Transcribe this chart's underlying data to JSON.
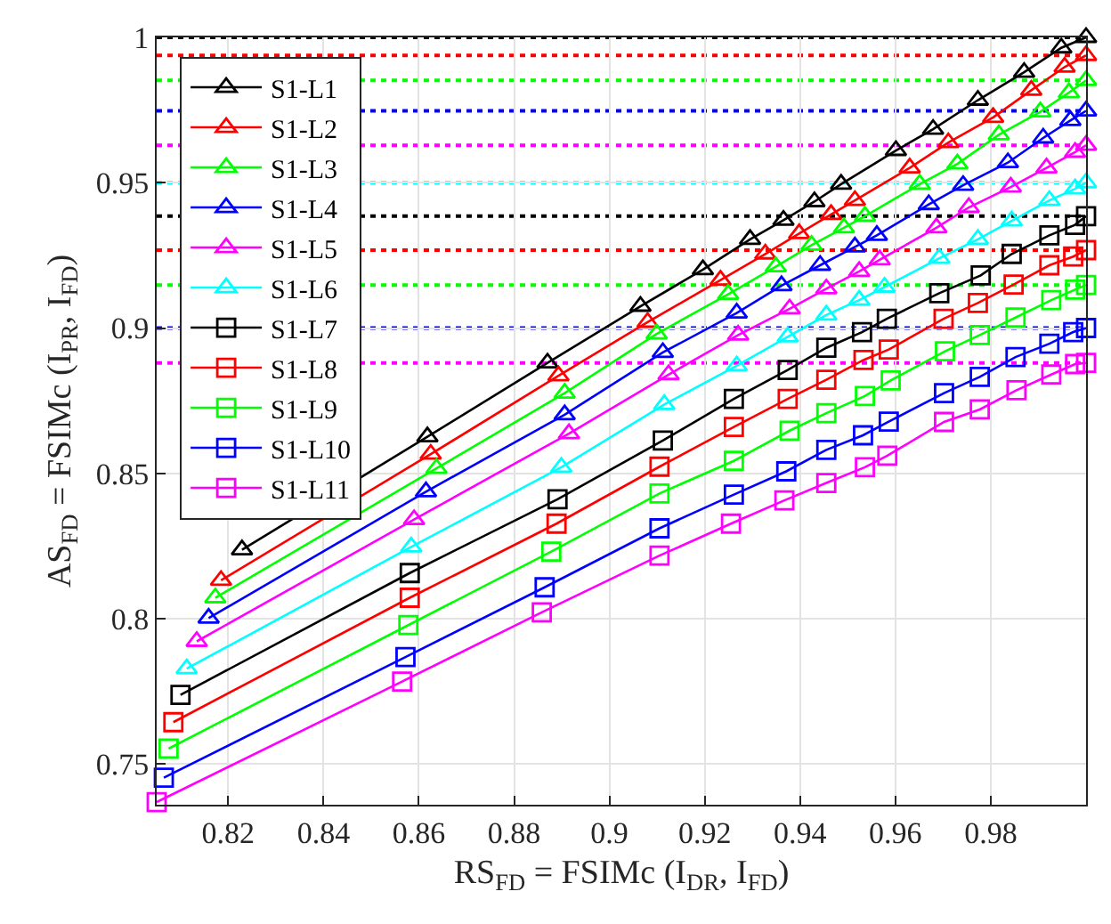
{
  "chart_data": {
    "type": "line",
    "xlabel": "RS$_{FD}$ = FSIMc (I$_{DR}$, I$_{FD}$)",
    "ylabel": "AS$_{FD}$ = FSIMc (I$_{PR}$, I$_{FD}$)",
    "xlim": [
      0.805,
      1
    ],
    "ylim": [
      0.736,
      1
    ],
    "xticks": [
      0.82,
      0.84,
      0.86,
      0.88,
      0.9,
      0.92,
      0.94,
      0.96,
      0.98
    ],
    "yticks": [
      0.75,
      0.8,
      0.85,
      0.9,
      0.95,
      1
    ],
    "grid": true,
    "legend": "top left",
    "line_style": "solid",
    "series": [
      {
        "name": "S1-L1",
        "color": "#000000",
        "marker": "triangle",
        "x": [
          0.8229,
          0.8618,
          0.887,
          0.9065,
          0.9196,
          0.9295,
          0.9365,
          0.943,
          0.9486,
          0.9601,
          0.9679,
          0.9773,
          0.987,
          0.9948,
          1.0
        ],
        "values": [
          0.8237,
          0.8626,
          0.888,
          0.9075,
          0.9201,
          0.9305,
          0.9371,
          0.9435,
          0.9495,
          0.9611,
          0.9684,
          0.9784,
          0.988,
          0.9964,
          1.0
        ]
      },
      {
        "name": "S1-L2",
        "color": "#ff0000",
        "marker": "triangle",
        "x": [
          0.8185,
          0.8625,
          0.8893,
          0.908,
          0.9233,
          0.9327,
          0.9398,
          0.9465,
          0.9515,
          0.963,
          0.9711,
          0.9805,
          0.9885,
          0.9955,
          1.0
        ],
        "values": [
          0.8132,
          0.8566,
          0.8836,
          0.902,
          0.9165,
          0.9255,
          0.9325,
          0.9391,
          0.9439,
          0.9551,
          0.9638,
          0.9725,
          0.9818,
          0.9898,
          0.9938
        ]
      },
      {
        "name": "S1-L3",
        "color": "#00ff00",
        "marker": "triangle",
        "x": [
          0.8173,
          0.8637,
          0.8906,
          0.9099,
          0.9249,
          0.9349,
          0.9424,
          0.9492,
          0.9536,
          0.9651,
          0.973,
          0.9817,
          0.9904,
          0.9964,
          1.0
        ],
        "values": [
          0.8072,
          0.8517,
          0.8776,
          0.898,
          0.9116,
          0.9211,
          0.9285,
          0.9345,
          0.9385,
          0.9495,
          0.9565,
          0.9665,
          0.9744,
          0.981,
          0.9852
        ]
      },
      {
        "name": "S1-L4",
        "color": "#0000ff",
        "marker": "triangle",
        "x": [
          0.8159,
          0.8615,
          0.8906,
          0.9112,
          0.9267,
          0.9361,
          0.9442,
          0.9515,
          0.9561,
          0.967,
          0.9742,
          0.9836,
          0.991,
          0.9967,
          1.0
        ],
        "values": [
          0.8002,
          0.8437,
          0.8702,
          0.8916,
          0.9052,
          0.9146,
          0.9216,
          0.9279,
          0.9319,
          0.9425,
          0.9491,
          0.9569,
          0.9654,
          0.9714,
          0.9747
        ]
      },
      {
        "name": "S1-L5",
        "color": "#ff00ff",
        "marker": "triangle",
        "x": [
          0.8134,
          0.859,
          0.8915,
          0.9124,
          0.927,
          0.9378,
          0.9455,
          0.9524,
          0.9567,
          0.9686,
          0.9754,
          0.9842,
          0.9917,
          0.9977,
          1.0
        ],
        "values": [
          0.7922,
          0.8341,
          0.8637,
          0.884,
          0.8976,
          0.9066,
          0.9135,
          0.9195,
          0.9235,
          0.9345,
          0.9415,
          0.9485,
          0.9551,
          0.9605,
          0.9629
        ]
      },
      {
        "name": "S1-L6",
        "color": "#00ffff",
        "marker": "triangle",
        "x": [
          0.8113,
          0.8584,
          0.8899,
          0.9115,
          0.9267,
          0.9374,
          0.9455,
          0.9524,
          0.9577,
          0.9692,
          0.9773,
          0.9844,
          0.9923,
          0.9977,
          1.0
        ],
        "values": [
          0.7828,
          0.8247,
          0.8521,
          0.8737,
          0.887,
          0.897,
          0.9045,
          0.9096,
          0.9141,
          0.924,
          0.9305,
          0.9369,
          0.9439,
          0.9479,
          0.95
        ]
      },
      {
        "name": "S1-L7",
        "color": "#000000",
        "marker": "square",
        "x": [
          0.81,
          0.8581,
          0.8891,
          0.9112,
          0.9261,
          0.9374,
          0.9455,
          0.953,
          0.9582,
          0.9692,
          0.9779,
          0.9844,
          0.9923,
          0.9977,
          1.0
        ],
        "values": [
          0.7738,
          0.8157,
          0.8411,
          0.8613,
          0.8756,
          0.8856,
          0.8932,
          0.8986,
          0.9032,
          0.912,
          0.9181,
          0.9255,
          0.9319,
          0.9355,
          0.9385
        ]
      },
      {
        "name": "S1-L8",
        "color": "#ff0000",
        "marker": "square",
        "x": [
          0.8085,
          0.8581,
          0.8889,
          0.9105,
          0.9261,
          0.9374,
          0.9455,
          0.9533,
          0.9586,
          0.9701,
          0.9773,
          0.9848,
          0.9923,
          0.9973,
          1.0
        ],
        "values": [
          0.7644,
          0.8072,
          0.8327,
          0.8523,
          0.866,
          0.8756,
          0.8822,
          0.889,
          0.8926,
          0.9032,
          0.9086,
          0.915,
          0.9216,
          0.9246,
          0.9268
        ]
      },
      {
        "name": "S1-L9",
        "color": "#00ff00",
        "marker": "square",
        "x": [
          0.8075,
          0.8578,
          0.8878,
          0.9105,
          0.9261,
          0.9378,
          0.9455,
          0.9536,
          0.959,
          0.9704,
          0.9777,
          0.9852,
          0.9927,
          0.9977,
          1.0
        ],
        "values": [
          0.7553,
          0.7978,
          0.8231,
          0.8431,
          0.8543,
          0.8647,
          0.8707,
          0.8766,
          0.882,
          0.892,
          0.8976,
          0.9036,
          0.9096,
          0.9132,
          0.9148
        ]
      },
      {
        "name": "S1-L10",
        "color": "#0000ff",
        "marker": "square",
        "x": [
          0.8065,
          0.8572,
          0.8864,
          0.9105,
          0.9261,
          0.9371,
          0.9455,
          0.9532,
          0.9586,
          0.9702,
          0.9777,
          0.9852,
          0.9923,
          0.9973,
          1.0
        ],
        "values": [
          0.7453,
          0.7868,
          0.8108,
          0.8311,
          0.8427,
          0.8507,
          0.8581,
          0.8631,
          0.8678,
          0.8776,
          0.8832,
          0.89,
          0.8946,
          0.8986,
          0.9
        ]
      },
      {
        "name": "S1-L11",
        "color": "#ff00ff",
        "marker": "square",
        "x": [
          0.805,
          0.8565,
          0.8858,
          0.9105,
          0.9255,
          0.9367,
          0.9455,
          0.9536,
          0.9583,
          0.9702,
          0.9777,
          0.9854,
          0.9927,
          0.9977,
          1.0
        ],
        "values": [
          0.7369,
          0.7784,
          0.8022,
          0.8217,
          0.8327,
          0.8407,
          0.8467,
          0.8521,
          0.8561,
          0.8677,
          0.872,
          0.8786,
          0.884,
          0.8876,
          0.888
        ]
      }
    ],
    "ref_lines": [
      {
        "axis": "y",
        "value": 1.0,
        "color": "#000000",
        "line_style": "dotted"
      },
      {
        "axis": "y",
        "value": 0.9938,
        "color": "#ff0000",
        "line_style": "dotted"
      },
      {
        "axis": "y",
        "value": 0.9852,
        "color": "#00ff00",
        "line_style": "dotted"
      },
      {
        "axis": "y",
        "value": 0.9747,
        "color": "#0000ff",
        "line_style": "dotted"
      },
      {
        "axis": "y",
        "value": 0.9629,
        "color": "#ff00ff",
        "line_style": "dotted"
      },
      {
        "axis": "y",
        "value": 0.95,
        "color": "#00ffff",
        "line_style": "dotted"
      },
      {
        "axis": "y",
        "value": 0.9385,
        "color": "#000000",
        "line_style": "dotted"
      },
      {
        "axis": "y",
        "value": 0.9268,
        "color": "#ff0000",
        "line_style": "dotted"
      },
      {
        "axis": "y",
        "value": 0.9148,
        "color": "#00ff00",
        "line_style": "dotted"
      },
      {
        "axis": "y",
        "value": 0.9,
        "color": "#0000ff",
        "line_style": "dotted"
      },
      {
        "axis": "y",
        "value": 0.888,
        "color": "#ff00ff",
        "line_style": "dotted"
      }
    ]
  }
}
